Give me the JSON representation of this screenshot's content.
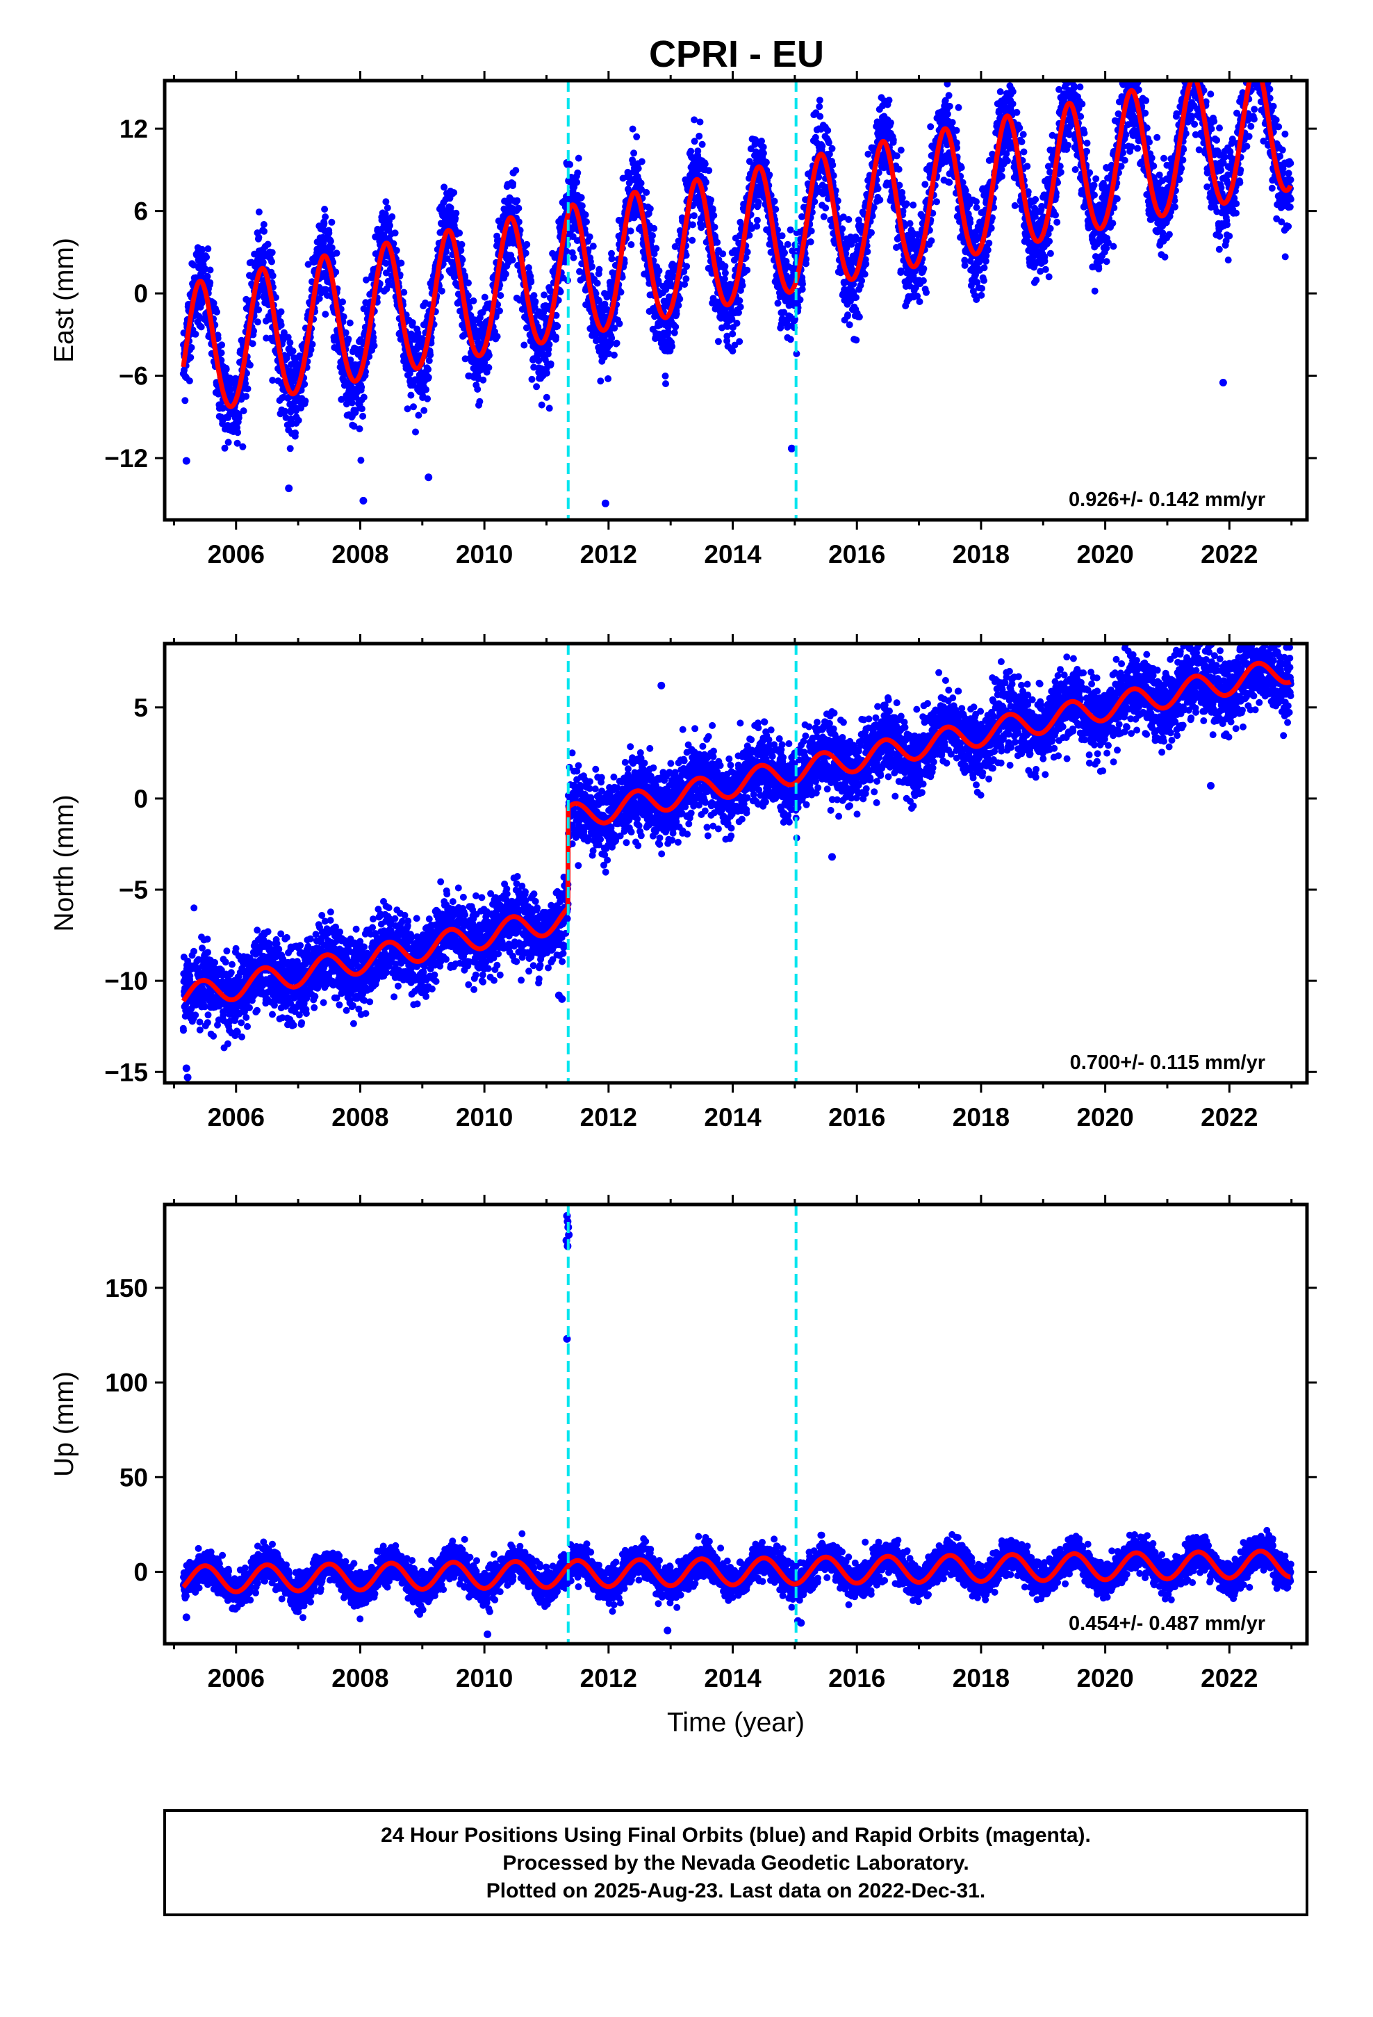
{
  "title": "CPRI - EU",
  "footer": {
    "lines": [
      "24 Hour Positions Using Final Orbits (blue) and Rapid Orbits (magenta).",
      "Processed by the Nevada Geodetic Laboratory.",
      "Plotted on 2025-Aug-23. Last data on 2022-Dec-31."
    ]
  },
  "colors": {
    "points": "#0000ff",
    "model": "#ff0000",
    "offset_lines": "#00e5ee",
    "frame": "#000000"
  },
  "chart_data": [
    {
      "type": "scatter",
      "component": "east",
      "ylabel": "East (mm)",
      "xlabel": "",
      "xlim": [
        2004.85,
        2023.25
      ],
      "ylim": [
        -16.5,
        15.5
      ],
      "xticks": [
        2006,
        2008,
        2010,
        2012,
        2014,
        2016,
        2018,
        2020,
        2022
      ],
      "yticks": [
        -12,
        -6,
        0,
        6,
        12
      ],
      "yticklabels": [
        "−12",
        "−6",
        "0",
        "6",
        "12"
      ],
      "rate_label": "0.926+/- 0.142 mm/yr",
      "data_span": [
        2005.15,
        2022.99
      ],
      "offsets": [
        2011.35,
        2015.02
      ],
      "model": {
        "intercept": -4.6,
        "rate": 0.926,
        "annual_amp": 4.8,
        "annual_peak": 0.42,
        "semiannual_amp": 0.3,
        "steps": []
      },
      "scatter_sd": 1.6,
      "outliers": [
        [
          2011.33,
          9.5
        ],
        [
          2011.36,
          8.2
        ],
        [
          2006.85,
          -14.2
        ],
        [
          2008.05,
          -15.1
        ],
        [
          2011.95,
          -15.3
        ],
        [
          2009.1,
          -13.4
        ],
        [
          2014.95,
          -11.3
        ],
        [
          2021.9,
          -6.5
        ],
        [
          2005.2,
          -12.2
        ]
      ],
      "series": [
        {
          "name": "Final Orbits",
          "role": "daily positions"
        },
        {
          "name": "model",
          "role": "fit"
        }
      ]
    },
    {
      "type": "scatter",
      "component": "north",
      "ylabel": "North (mm)",
      "xlabel": "",
      "xlim": [
        2004.85,
        2023.25
      ],
      "ylim": [
        -15.6,
        8.5
      ],
      "xticks": [
        2006,
        2008,
        2010,
        2012,
        2014,
        2016,
        2018,
        2020,
        2022
      ],
      "yticks": [
        -15,
        -10,
        -5,
        0,
        5
      ],
      "yticklabels": [
        "−15",
        "−10",
        "−5",
        "0",
        "5"
      ],
      "rate_label": "0.700+/- 0.115 mm/yr",
      "data_span": [
        2005.15,
        2022.99
      ],
      "offsets": [
        2011.35,
        2015.02
      ],
      "model": {
        "intercept": -11.0,
        "rate": 0.7,
        "annual_amp": 0.7,
        "annual_peak": 0.45,
        "semiannual_amp": 0.0,
        "steps": [
          [
            2011.35,
            5.5
          ]
        ]
      },
      "scatter_sd": 1.0,
      "outliers": [
        [
          2005.2,
          -14.8
        ],
        [
          2005.22,
          -15.3
        ],
        [
          2012.85,
          6.2
        ],
        [
          2011.2,
          -10.8
        ],
        [
          2011.25,
          -11.0
        ],
        [
          2021.7,
          0.7
        ],
        [
          2015.6,
          -3.2
        ]
      ],
      "series": [
        {
          "name": "Final Orbits",
          "role": "daily positions"
        },
        {
          "name": "model",
          "role": "fit"
        }
      ]
    },
    {
      "type": "scatter",
      "component": "up",
      "ylabel": "Up (mm)",
      "xlabel": "Time (year)",
      "xlim": [
        2004.85,
        2023.25
      ],
      "ylim": [
        -38,
        194
      ],
      "xticks": [
        2006,
        2008,
        2010,
        2012,
        2014,
        2016,
        2018,
        2020,
        2022
      ],
      "yticks": [
        0,
        50,
        100,
        150
      ],
      "yticklabels": [
        "0",
        "50",
        "100",
        "150"
      ],
      "rate_label": "0.454+/- 0.487 mm/yr",
      "data_span": [
        2005.15,
        2022.99
      ],
      "offsets": [
        2011.35,
        2015.02
      ],
      "model": {
        "intercept": -4.0,
        "rate": 0.454,
        "annual_amp": 7.0,
        "annual_peak": 0.5,
        "semiannual_amp": 0.0,
        "steps": []
      },
      "scatter_sd": 4.5,
      "outliers": [
        [
          2011.33,
          188
        ],
        [
          2011.34,
          185
        ],
        [
          2011.35,
          182
        ],
        [
          2011.36,
          178
        ],
        [
          2011.32,
          175
        ],
        [
          2011.34,
          172
        ],
        [
          2011.33,
          123
        ],
        [
          2010.05,
          -33
        ],
        [
          2012.95,
          -31
        ],
        [
          2015.05,
          -26
        ],
        [
          2015.1,
          -27
        ],
        [
          2005.2,
          -24
        ]
      ],
      "series": [
        {
          "name": "Final Orbits",
          "role": "daily positions"
        },
        {
          "name": "model",
          "role": "fit"
        }
      ]
    }
  ]
}
